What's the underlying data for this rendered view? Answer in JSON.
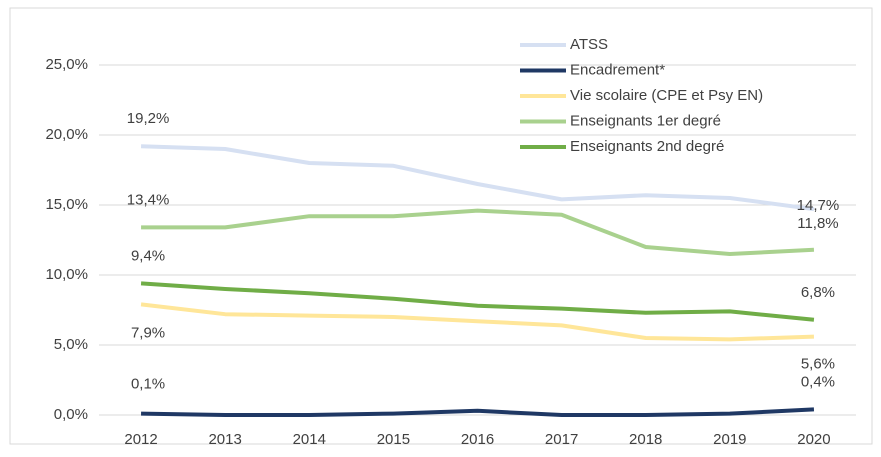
{
  "chart_data": {
    "type": "line",
    "categories": [
      "2012",
      "2013",
      "2014",
      "2015",
      "2016",
      "2017",
      "2018",
      "2019",
      "2020"
    ],
    "series": [
      {
        "name": "ATSS",
        "color": "#d6e0f2",
        "values": [
          19.2,
          19.0,
          18.0,
          17.8,
          16.5,
          15.4,
          15.7,
          15.5,
          14.7
        ],
        "value_labels": [
          "19,2%",
          null,
          null,
          null,
          null,
          null,
          null,
          null,
          "14,7%"
        ]
      },
      {
        "name": "Encadrement*",
        "color": "#1f3864",
        "values": [
          0.1,
          0.0,
          0.0,
          0.1,
          0.3,
          0.0,
          0.0,
          0.1,
          0.4
        ],
        "value_labels": [
          "0,1%",
          null,
          null,
          null,
          null,
          null,
          null,
          null,
          "0,4%"
        ]
      },
      {
        "name": "Vie scolaire (CPE et Psy EN)",
        "color": "#ffe699",
        "values": [
          7.9,
          7.2,
          7.1,
          7.0,
          6.7,
          6.4,
          5.5,
          5.4,
          5.6
        ],
        "value_labels": [
          "7,9%",
          null,
          null,
          null,
          null,
          null,
          null,
          null,
          "5,6%"
        ]
      },
      {
        "name": "Enseignants 1er degré",
        "color": "#a9d18e",
        "values": [
          13.4,
          13.4,
          14.2,
          14.2,
          14.6,
          14.3,
          12.0,
          11.5,
          11.8
        ],
        "value_labels": [
          "13,4%",
          null,
          null,
          null,
          null,
          null,
          null,
          null,
          "11,8%"
        ]
      },
      {
        "name": "Enseignants 2nd degré",
        "color": "#70ad47",
        "values": [
          9.4,
          9.0,
          8.7,
          8.3,
          7.8,
          7.6,
          7.3,
          7.4,
          6.8
        ],
        "value_labels": [
          "9,4%",
          null,
          null,
          null,
          null,
          null,
          null,
          null,
          "6,8%"
        ]
      }
    ],
    "ylim": [
      0,
      25
    ],
    "yticks": [
      {
        "value": 0,
        "label": "0,0%"
      },
      {
        "value": 5,
        "label": "5,0%"
      },
      {
        "value": 10,
        "label": "10,0%"
      },
      {
        "value": 15,
        "label": "15,0%"
      },
      {
        "value": 20,
        "label": "20,0%"
      },
      {
        "value": 25,
        "label": "25,0%"
      }
    ],
    "grid": true,
    "legend": "top-right"
  }
}
